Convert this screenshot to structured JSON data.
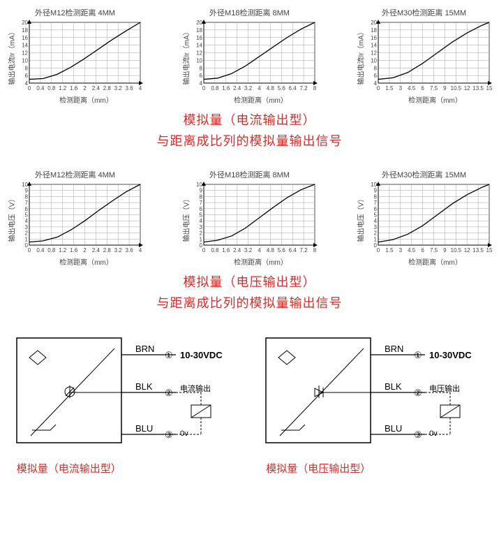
{
  "charts_current": [
    {
      "title": "外径M12检测距离 4MM",
      "ylabel": "输出电流Ir（mA）",
      "xlabel": "检测距离（mm）",
      "yticks": [
        4,
        6,
        8,
        10,
        12,
        14,
        16,
        18,
        20
      ],
      "ylim": [
        4,
        20
      ],
      "xticks": [
        0,
        0.4,
        0.8,
        1.2,
        1.6,
        2,
        2.4,
        2.8,
        3.2,
        3.6,
        4
      ],
      "xlim": [
        0,
        4
      ],
      "curve": [
        [
          0,
          5
        ],
        [
          0.5,
          5.2
        ],
        [
          1,
          6.3
        ],
        [
          1.5,
          8.2
        ],
        [
          2,
          10.5
        ],
        [
          2.5,
          13
        ],
        [
          3,
          15.5
        ],
        [
          3.5,
          17.8
        ],
        [
          4,
          20
        ]
      ],
      "grid_color": "#a0a0a0",
      "line_color": "#000000",
      "axis_color": "#000000",
      "bg_color": "#ffffff",
      "font_size": 8
    },
    {
      "title": "外径M18检测距离 8MM",
      "ylabel": "输出电流Ir（mA）",
      "xlabel": "检测距离（mm）",
      "yticks": [
        4,
        6,
        8,
        10,
        12,
        14,
        16,
        18,
        20
      ],
      "ylim": [
        4,
        20
      ],
      "xticks": [
        0,
        0.8,
        1.6,
        2.4,
        3.2,
        4,
        4.8,
        5.6,
        6.4,
        7.2,
        8
      ],
      "xlim": [
        0,
        8
      ],
      "curve": [
        [
          0,
          5
        ],
        [
          1,
          5.3
        ],
        [
          2,
          6.5
        ],
        [
          3,
          8.5
        ],
        [
          4,
          11
        ],
        [
          5,
          13.5
        ],
        [
          6,
          16
        ],
        [
          7,
          18.2
        ],
        [
          8,
          20
        ]
      ],
      "grid_color": "#a0a0a0",
      "line_color": "#000000",
      "axis_color": "#000000",
      "bg_color": "#ffffff",
      "font_size": 8
    },
    {
      "title": "外径M30检测距离 15MM",
      "ylabel": "输出电流Ir（mA）",
      "xlabel": "检测距离（mm）",
      "yticks": [
        4,
        6,
        8,
        10,
        12,
        14,
        16,
        18,
        20
      ],
      "ylim": [
        4,
        20
      ],
      "xticks": [
        0,
        1.5,
        3,
        4.5,
        6,
        7.5,
        9,
        10.5,
        12,
        13.5,
        15
      ],
      "xlim": [
        0,
        15
      ],
      "curve": [
        [
          0,
          5
        ],
        [
          2,
          5.4
        ],
        [
          4,
          6.8
        ],
        [
          6,
          9.2
        ],
        [
          8,
          12
        ],
        [
          10,
          14.8
        ],
        [
          12,
          17.2
        ],
        [
          14,
          19.2
        ],
        [
          15,
          20
        ]
      ],
      "grid_color": "#a0a0a0",
      "line_color": "#000000",
      "axis_color": "#000000",
      "bg_color": "#ffffff",
      "font_size": 8
    }
  ],
  "charts_voltage": [
    {
      "title": "外径M12检测距离 4MM",
      "ylabel": "输出电压（V）",
      "xlabel": "检测距离（mm）",
      "yticks": [
        0,
        1,
        2,
        3,
        4,
        5,
        6,
        7,
        8,
        9,
        10
      ],
      "ylim": [
        0,
        10
      ],
      "xticks": [
        0,
        0.4,
        0.8,
        1.2,
        1.6,
        2,
        2.4,
        2.8,
        3.2,
        3.6,
        4
      ],
      "xlim": [
        0,
        4
      ],
      "curve": [
        [
          0,
          0.5
        ],
        [
          0.5,
          0.7
        ],
        [
          1,
          1.3
        ],
        [
          1.5,
          2.5
        ],
        [
          2,
          4
        ],
        [
          2.5,
          5.7
        ],
        [
          3,
          7.3
        ],
        [
          3.5,
          8.8
        ],
        [
          4,
          10
        ]
      ],
      "grid_color": "#a0a0a0",
      "line_color": "#000000",
      "axis_color": "#000000",
      "bg_color": "#ffffff",
      "font_size": 8
    },
    {
      "title": "外径M18检测距离 8MM",
      "ylabel": "输出电压（V）",
      "xlabel": "检测距离（mm）",
      "yticks": [
        0,
        1,
        2,
        3,
        4,
        5,
        6,
        7,
        8,
        9,
        10
      ],
      "ylim": [
        0,
        10
      ],
      "xticks": [
        0,
        0.8,
        1.6,
        2.4,
        3.2,
        4,
        4.8,
        5.6,
        6.4,
        7.2,
        8
      ],
      "xlim": [
        0,
        8
      ],
      "curve": [
        [
          0,
          0.5
        ],
        [
          1,
          0.8
        ],
        [
          2,
          1.5
        ],
        [
          3,
          2.8
        ],
        [
          4,
          4.5
        ],
        [
          5,
          6.2
        ],
        [
          6,
          7.8
        ],
        [
          7,
          9.1
        ],
        [
          8,
          10
        ]
      ],
      "grid_color": "#a0a0a0",
      "line_color": "#000000",
      "axis_color": "#000000",
      "bg_color": "#ffffff",
      "font_size": 8
    },
    {
      "title": "外径M30检测距离 15MM",
      "ylabel": "输出电压（V）",
      "xlabel": "检测距离（mm）",
      "yticks": [
        0,
        1,
        2,
        3,
        4,
        5,
        6,
        7,
        8,
        9,
        10
      ],
      "ylim": [
        0,
        10
      ],
      "xticks": [
        0,
        1.5,
        3,
        4.5,
        6,
        7.5,
        9,
        10.5,
        12,
        13.5,
        15
      ],
      "xlim": [
        0,
        15
      ],
      "curve": [
        [
          0,
          0.5
        ],
        [
          2,
          0.9
        ],
        [
          4,
          1.8
        ],
        [
          6,
          3.2
        ],
        [
          8,
          5
        ],
        [
          10,
          6.8
        ],
        [
          12,
          8.3
        ],
        [
          14,
          9.5
        ],
        [
          15,
          10
        ]
      ],
      "grid_color": "#a0a0a0",
      "line_color": "#000000",
      "axis_color": "#000000",
      "bg_color": "#ffffff",
      "font_size": 8
    }
  ],
  "section_current": {
    "title": "模拟量（电流输出型）",
    "sub": "与距离成比列的模拟量输出信号",
    "color": "#d0302a"
  },
  "section_voltage": {
    "title": "模拟量（电压输出型）",
    "sub": "与距离成比列的模拟量输出信号",
    "color": "#d0302a"
  },
  "wiring_current": {
    "label": "模拟量（电流输出型）",
    "brn": "BRN",
    "blk": "BLK",
    "blu": "BLU",
    "pin1": "①",
    "pin2": "②",
    "pin3": "③",
    "voltage": "10-30VDC",
    "out_label": "电流输出",
    "zero": "0v",
    "box_stroke": "#000",
    "wire_color": "#000",
    "label_color": "#d0302a",
    "type": "current"
  },
  "wiring_voltage": {
    "label": "模拟量（电压输出型）",
    "brn": "BRN",
    "blk": "BLK",
    "blu": "BLU",
    "pin1": "①",
    "pin2": "②",
    "pin3": "③",
    "voltage": "10-30VDC",
    "out_label": "电压输出",
    "zero": "0v",
    "box_stroke": "#000",
    "wire_color": "#000",
    "label_color": "#d0302a",
    "type": "voltage"
  },
  "chart_geom": {
    "width": 185,
    "height": 105,
    "margin_l": 22,
    "margin_r": 4,
    "margin_t": 4,
    "margin_b": 14
  }
}
